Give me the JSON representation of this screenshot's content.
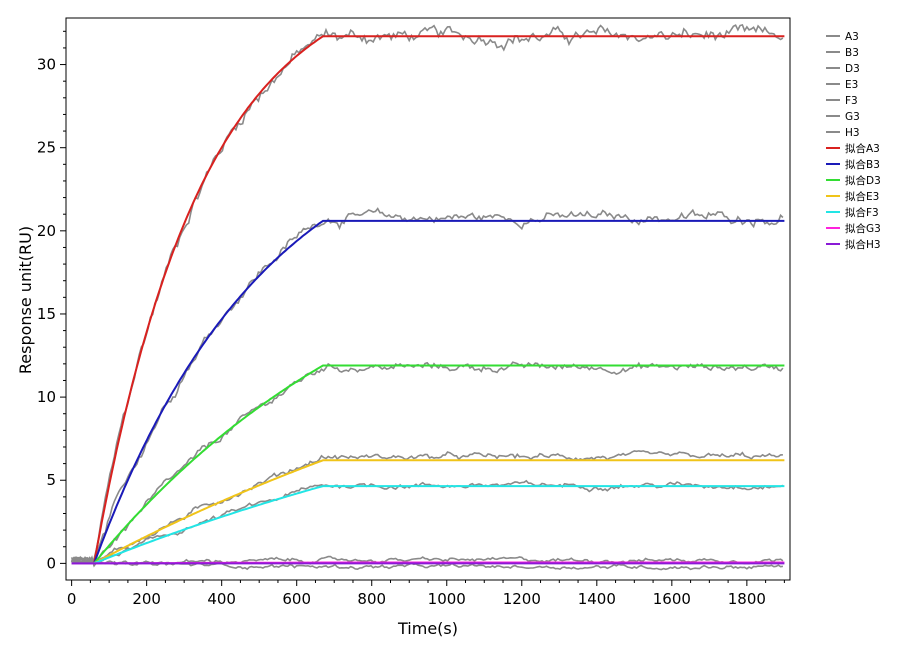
{
  "chart_data": {
    "type": "line",
    "xlabel": "Time(s)",
    "ylabel": "Response unit(RU)",
    "xlim": [
      -15,
      1915
    ],
    "ylim": [
      -1.0,
      32.8
    ],
    "xticks": [
      0,
      200,
      400,
      600,
      800,
      1000,
      1200,
      1400,
      1600,
      1800
    ],
    "yticks": [
      0,
      5,
      10,
      15,
      20,
      25,
      30
    ],
    "grid": false,
    "legend_position": "right",
    "association_start": 60,
    "dissociation_start": 670,
    "x_end": 1900,
    "series": [
      {
        "name": "A3",
        "kind": "data",
        "color": "#8a8a8a",
        "plateau": 31.7
      },
      {
        "name": "B3",
        "kind": "data",
        "color": "#8a8a8a",
        "plateau": 20.8
      },
      {
        "name": "D3",
        "kind": "data",
        "color": "#8a8a8a",
        "plateau": 11.8
      },
      {
        "name": "E3",
        "kind": "data",
        "color": "#8a8a8a",
        "plateau": 6.4
      },
      {
        "name": "F3",
        "kind": "data",
        "color": "#8a8a8a",
        "plateau": 4.7
      },
      {
        "name": "G3",
        "kind": "data",
        "color": "#8a8a8a",
        "plateau": 0.2
      },
      {
        "name": "H3",
        "kind": "data",
        "color": "#8a8a8a",
        "plateau": -0.2
      },
      {
        "name": "拟合A3",
        "kind": "fit",
        "color": "#d9211f",
        "plateau": 31.7
      },
      {
        "name": "拟合B3",
        "kind": "fit",
        "color": "#1a1ab8",
        "plateau": 20.6
      },
      {
        "name": "拟合D3",
        "kind": "fit",
        "color": "#33dd33",
        "plateau": 11.9
      },
      {
        "name": "拟合E3",
        "kind": "fit",
        "color": "#f0c419",
        "plateau": 6.2
      },
      {
        "name": "拟合F3",
        "kind": "fit",
        "color": "#22e5e5",
        "plateau": 4.65
      },
      {
        "name": "拟合G3",
        "kind": "fit",
        "color": "#ff22dd",
        "plateau": 0.05
      },
      {
        "name": "拟合H3",
        "kind": "fit",
        "color": "#8a1ad6",
        "plateau": 0.0
      }
    ]
  }
}
